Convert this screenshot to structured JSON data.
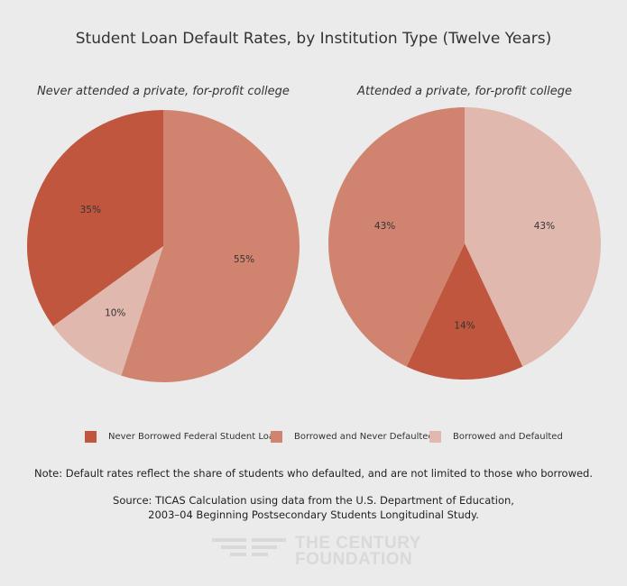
{
  "chart_data": {
    "type": "pie",
    "title": "Student Loan Default Rates, by Institution Type (Twelve Years)",
    "legend": [
      {
        "label": "Never Borrowed Federal Student Loan",
        "color": "#c0563d"
      },
      {
        "label": "Borrowed and Never Defaulted",
        "color": "#d08470"
      },
      {
        "label": "Borrowed and Defaulted",
        "color": "#e0b8ae"
      }
    ],
    "pies": [
      {
        "subtitle": "Never attended a private, for-profit college",
        "slices": [
          {
            "label": "Borrowed and Never Defaulted",
            "value": 55,
            "text": "55%",
            "color": "#d08470"
          },
          {
            "label": "Borrowed and Defaulted",
            "value": 10,
            "text": "10%",
            "color": "#e0b8ae"
          },
          {
            "label": "Never Borrowed Federal Student Loan",
            "value": 35,
            "text": "35%",
            "color": "#c0563d"
          }
        ]
      },
      {
        "subtitle": "Attended a private, for-profit college",
        "slices": [
          {
            "label": "Borrowed and Defaulted",
            "value": 43,
            "text": "43%",
            "color": "#e0b8ae"
          },
          {
            "label": "Never Borrowed Federal Student Loan",
            "value": 14,
            "text": "14%",
            "color": "#c0563d"
          },
          {
            "label": "Borrowed and Never Defaulted",
            "value": 43,
            "text": "43%",
            "color": "#d08470"
          }
        ]
      }
    ]
  },
  "note": "Note: Default rates reflect the share of students who defaulted, and are not limited to those who borrowed.",
  "source_line1": "Source: TICAS Calculation using data from the U.S. Department of Education,",
  "source_line2": "2003–04 Beginning Postsecondary Students Longitudinal Study.",
  "logo_line1": "THE CENTURY",
  "logo_line2": "FOUNDATION"
}
